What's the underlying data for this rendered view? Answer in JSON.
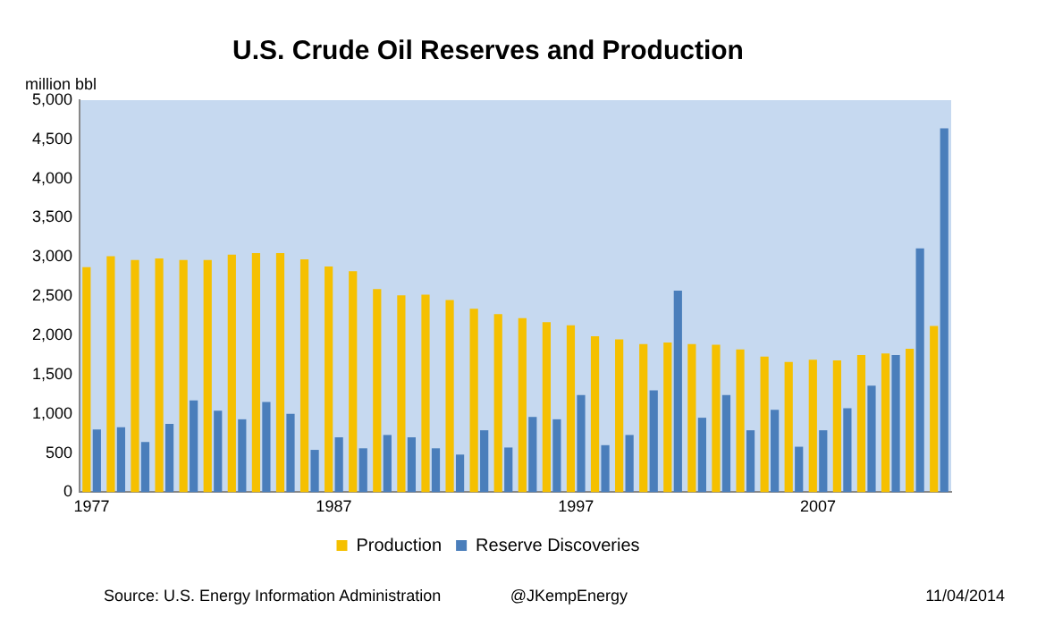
{
  "chart_data": {
    "type": "bar",
    "title": "U.S. Crude Oil Reserves and Production",
    "ylabel": "million bbl",
    "categories": [
      "1977",
      null,
      null,
      null,
      null,
      null,
      null,
      null,
      null,
      null,
      "1987",
      null,
      null,
      null,
      null,
      null,
      null,
      null,
      null,
      null,
      "1997",
      null,
      null,
      null,
      null,
      null,
      null,
      null,
      null,
      null,
      "2007",
      null,
      null,
      null,
      null,
      null
    ],
    "series": [
      {
        "name": "Production",
        "color": "#f5c000",
        "values": [
          2870,
          3010,
          2960,
          2980,
          2960,
          2960,
          3030,
          3050,
          3050,
          2970,
          2880,
          2820,
          2590,
          2510,
          2520,
          2450,
          2340,
          2270,
          2220,
          2170,
          2130,
          1990,
          1950,
          1890,
          1910,
          1890,
          1880,
          1820,
          1730,
          1660,
          1690,
          1680,
          1750,
          1770,
          1830,
          2120
        ]
      },
      {
        "name": "Reserve Discoveries",
        "color": "#4a7ebb",
        "values": [
          800,
          830,
          640,
          870,
          1170,
          1040,
          930,
          1150,
          1000,
          540,
          700,
          560,
          730,
          700,
          560,
          480,
          790,
          570,
          960,
          930,
          1240,
          600,
          730,
          1300,
          2570,
          950,
          1240,
          790,
          1050,
          580,
          790,
          1070,
          1360,
          1750,
          3110,
          4640
        ]
      }
    ],
    "ylim": [
      0,
      5000
    ],
    "yticks": [
      0,
      500,
      {
        "value": 1000,
        "label": "1,000"
      },
      {
        "value": 1500,
        "label": "1,500"
      },
      {
        "value": 2000,
        "label": "2,000"
      },
      {
        "value": 2500,
        "label": "2,500"
      },
      {
        "value": 3000,
        "label": "3,000"
      },
      {
        "value": 3500,
        "label": "3,500"
      },
      {
        "value": 4000,
        "label": "4,000"
      },
      {
        "value": 4500,
        "label": "4,500"
      },
      {
        "value": 5000,
        "label": "5,000"
      }
    ],
    "grid": false,
    "legend": "bottom",
    "annotations": [
      "Source: U.S. Energy Information Administration",
      "@JKempEnergy",
      "11/04/2014"
    ]
  }
}
